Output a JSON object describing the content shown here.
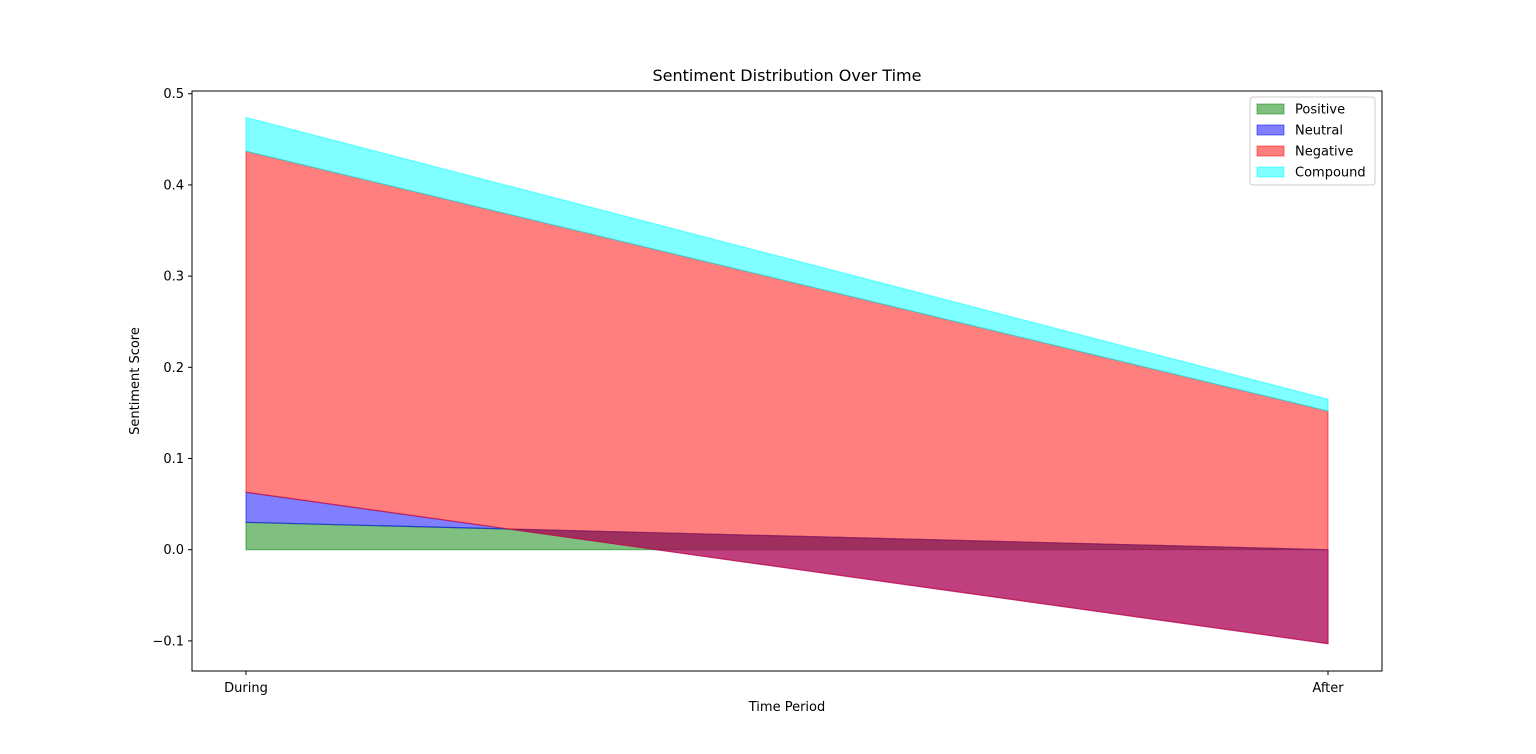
{
  "chart_data": {
    "type": "area",
    "title": "Sentiment Distribution Over Time",
    "xlabel": "Time Period",
    "ylabel": "Sentiment Score",
    "categories": [
      "During",
      "After"
    ],
    "ylim": [
      -0.133,
      0.503
    ],
    "yticks": [
      -0.1,
      0.0,
      0.1,
      0.2,
      0.3,
      0.4,
      0.5
    ],
    "ytick_labels": [
      "−0.1",
      "0.0",
      "0.1",
      "0.2",
      "0.3",
      "0.4",
      "0.5"
    ],
    "grid": false,
    "legend_position": "top-right",
    "series": [
      {
        "name": "Positive",
        "values": [
          0.03,
          0.0
        ],
        "color": "#008000"
      },
      {
        "name": "Neutral",
        "values": [
          0.033,
          -0.103
        ],
        "color": "#0000ff"
      },
      {
        "name": "Negative",
        "values": [
          0.374,
          0.255
        ],
        "color": "#ff0000"
      },
      {
        "name": "Compound",
        "values": [
          0.037,
          0.013
        ],
        "color": "#00ffff"
      }
    ]
  }
}
